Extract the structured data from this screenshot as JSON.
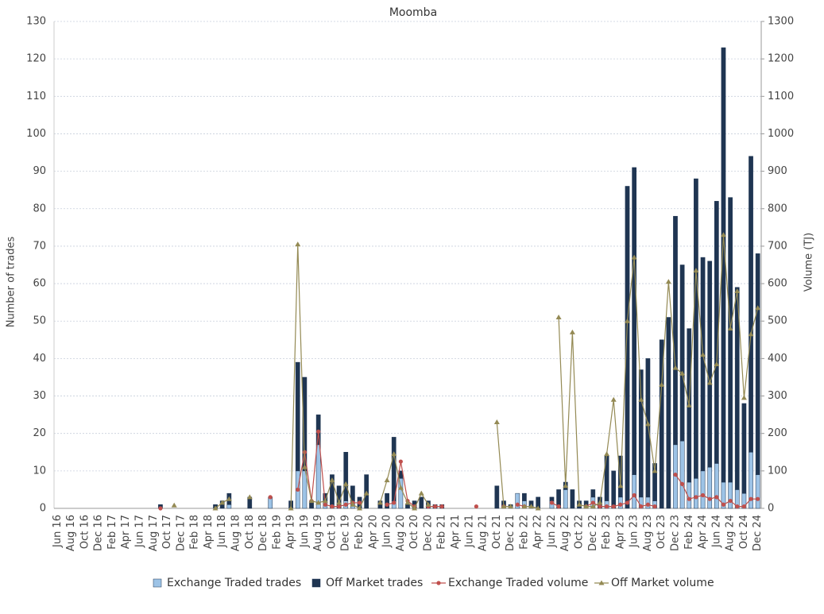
{
  "chart_data": {
    "type": "bar",
    "title": "Moomba",
    "y_label": "Number of trades",
    "y2_label": "Volume (TJ)",
    "categories": [
      "Jun 16",
      null,
      "Aug 16",
      null,
      "Oct 16",
      null,
      "Dec 16",
      null,
      "Feb 17",
      null,
      "Apr 17",
      null,
      "Jun 17",
      null,
      "Aug 17",
      null,
      "Oct 17",
      null,
      "Dec 17",
      null,
      "Feb 18",
      null,
      "Apr 18",
      null,
      "Jun 18",
      null,
      "Aug 18",
      null,
      "Oct 18",
      null,
      "Dec 18",
      null,
      "Feb 19",
      null,
      "Apr 19",
      null,
      "Jun 19",
      null,
      "Aug 19",
      null,
      "Oct 19",
      null,
      "Dec 19",
      null,
      "Feb 20",
      null,
      "Apr 20",
      null,
      "Jun 20",
      null,
      "Aug 20",
      null,
      "Oct 20",
      null,
      "Dec 20",
      null,
      "Feb 21",
      null,
      "Apr 21",
      null,
      "Jun 21",
      null,
      "Aug 21",
      null,
      "Oct 21",
      null,
      "Dec 21",
      null,
      "Feb 22",
      null,
      "Apr 22",
      null,
      "Jun 22",
      null,
      "Aug 22",
      null,
      "Oct 22",
      null,
      "Dec 22",
      null,
      "Feb 23",
      null,
      "Apr 23",
      null,
      "Jun 23",
      null,
      "Aug 23",
      null,
      "Oct 23",
      null,
      "Dec 23",
      null,
      "Feb 24",
      null,
      "Apr 24",
      null,
      "Jun 24",
      null,
      "Aug 24",
      null,
      "Oct 24",
      null,
      "Dec 24"
    ],
    "series": [
      {
        "name": "Exchange Traded trades",
        "kind": "bar",
        "color": "#9dc3e6",
        "values": [
          0,
          0,
          0,
          0,
          0,
          0,
          0,
          0,
          0,
          0,
          0,
          0,
          0,
          0,
          0,
          0,
          0,
          0,
          0,
          0,
          0,
          0,
          0,
          0,
          0,
          1,
          0,
          0,
          0,
          0,
          0,
          3,
          0,
          0,
          0,
          10,
          10,
          0,
          17,
          2,
          1,
          0,
          2,
          2,
          0,
          0,
          0,
          0,
          0,
          2,
          8,
          0,
          0,
          0,
          0,
          0,
          0,
          0,
          0,
          0,
          0,
          0,
          0,
          0,
          0,
          0,
          0,
          4,
          2,
          0,
          0,
          0,
          2,
          0,
          5,
          0,
          0,
          0,
          3,
          0,
          2,
          0,
          3,
          0,
          9,
          3,
          3,
          2,
          0,
          0,
          17,
          18,
          7,
          8,
          10,
          11,
          12,
          7,
          7,
          5,
          4,
          15,
          9
        ]
      },
      {
        "name": "Off Market trades",
        "kind": "bar",
        "color": "#1f3552",
        "values": [
          0,
          0,
          0,
          0,
          0,
          0,
          0,
          0,
          0,
          0,
          0,
          0,
          0,
          0,
          0,
          1,
          0,
          0,
          0,
          0,
          0,
          0,
          0,
          1,
          2,
          3,
          0,
          0,
          3,
          0,
          0,
          0,
          0,
          0,
          2,
          29,
          25,
          2,
          8,
          2,
          8,
          6,
          13,
          4,
          3,
          9,
          0,
          2,
          4,
          17,
          2,
          1,
          2,
          3,
          2,
          1,
          1,
          0,
          0,
          0,
          0,
          0,
          0,
          0,
          6,
          2,
          1,
          0,
          2,
          2,
          3,
          0,
          1,
          5,
          2,
          5,
          2,
          2,
          2,
          3,
          12,
          10,
          11,
          86,
          82,
          34,
          37,
          10,
          45,
          51,
          61,
          47,
          41,
          80,
          57,
          55,
          70,
          116,
          76,
          54,
          24,
          79,
          59
        ]
      },
      {
        "name": "Exchange Traded volume",
        "kind": "line",
        "marker": "circle",
        "axis": "y2",
        "color": "#c0504d",
        "values": [
          null,
          null,
          null,
          null,
          null,
          null,
          null,
          null,
          null,
          null,
          null,
          null,
          null,
          null,
          null,
          0,
          null,
          null,
          null,
          null,
          null,
          null,
          null,
          null,
          null,
          null,
          null,
          null,
          null,
          null,
          null,
          30,
          null,
          null,
          null,
          50,
          150,
          20,
          205,
          10,
          5,
          5,
          10,
          15,
          15,
          null,
          null,
          null,
          10,
          15,
          125,
          20,
          5,
          null,
          5,
          5,
          5,
          null,
          null,
          null,
          null,
          5,
          null,
          null,
          null,
          5,
          null,
          10,
          5,
          null,
          null,
          null,
          15,
          5,
          null,
          null,
          null,
          5,
          15,
          5,
          5,
          5,
          10,
          15,
          35,
          5,
          10,
          5,
          null,
          null,
          90,
          65,
          25,
          30,
          35,
          25,
          30,
          10,
          20,
          5,
          5,
          25,
          25
        ]
      },
      {
        "name": "Off Market volume",
        "kind": "line",
        "marker": "triangle",
        "axis": "y2",
        "color": "#948a54",
        "values": [
          null,
          null,
          null,
          null,
          null,
          null,
          null,
          null,
          null,
          null,
          null,
          null,
          null,
          null,
          null,
          null,
          null,
          8,
          null,
          null,
          null,
          null,
          null,
          0,
          15,
          25,
          null,
          null,
          30,
          null,
          null,
          null,
          null,
          null,
          0,
          705,
          110,
          20,
          15,
          20,
          75,
          15,
          65,
          10,
          0,
          40,
          null,
          15,
          75,
          145,
          55,
          15,
          0,
          40,
          10,
          null,
          null,
          null,
          null,
          null,
          null,
          null,
          null,
          null,
          230,
          5,
          5,
          null,
          5,
          5,
          0,
          null,
          null,
          510,
          60,
          470,
          10,
          5,
          5,
          15,
          145,
          290,
          60,
          500,
          670,
          290,
          225,
          100,
          330,
          605,
          375,
          360,
          275,
          635,
          410,
          335,
          385,
          730,
          480,
          580,
          295,
          465,
          535
        ]
      }
    ],
    "ylim": [
      0,
      130
    ],
    "yticks": [
      0,
      10,
      20,
      30,
      40,
      50,
      60,
      70,
      80,
      90,
      100,
      110,
      120,
      130
    ],
    "y2lim": [
      0,
      1300
    ],
    "y2ticks": [
      0,
      100,
      200,
      300,
      400,
      500,
      600,
      700,
      800,
      900,
      1000,
      1100,
      1200,
      1300
    ],
    "grid": true,
    "legend": "bottom"
  }
}
